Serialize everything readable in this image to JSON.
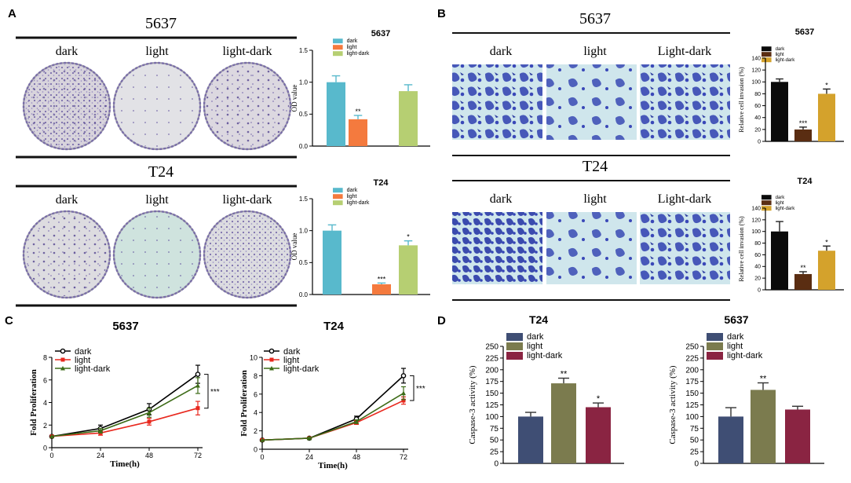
{
  "panel_labels": {
    "A": "A",
    "B": "B",
    "C": "C",
    "D": "D"
  },
  "colors": {
    "od_dark": "#58b9cc",
    "od_light": "#f47a3e",
    "od_lightdark": "#b6cf72",
    "inv_dark": "#0a0a0a",
    "inv_light": "#5a2d12",
    "inv_lightdark": "#d4a22c",
    "prol_dark": "#000000",
    "prol_light": "#e8281e",
    "prol_lightdark": "#3d6b17",
    "casp_dark": "#3f4e74",
    "casp_light": "#7b7b4e",
    "casp_lightdark": "#8a2442"
  },
  "panel_a": {
    "rows": [
      {
        "title": "5637",
        "labels": [
          "dark",
          "light",
          "light-dark"
        ]
      },
      {
        "title": "T24",
        "labels": [
          "dark",
          "light",
          "light-dark"
        ]
      }
    ]
  },
  "panel_b": {
    "rows": [
      {
        "title": "5637",
        "labels": [
          "dark",
          "light",
          "Light-dark"
        ]
      },
      {
        "title": "T24",
        "labels": [
          "dark",
          "light",
          "Light-dark"
        ]
      }
    ]
  },
  "chart_data": [
    {
      "id": "a_5637",
      "type": "bar",
      "title": "5637",
      "legend": [
        "dark",
        "light",
        "light-dark"
      ],
      "categories": [
        "dark",
        "light",
        "light-dark"
      ],
      "values": [
        1.0,
        0.42,
        0.86
      ],
      "errors": [
        0.1,
        0.06,
        0.1
      ],
      "annotations": [
        "",
        "**",
        ""
      ],
      "ylabel": "OD value",
      "ylim": [
        0,
        1.5
      ],
      "yticks": [
        "0.0",
        "0.5",
        "1.0",
        "1.5"
      ],
      "ytick_values": [
        0,
        0.5,
        1.0,
        1.5
      ]
    },
    {
      "id": "a_t24",
      "type": "bar",
      "title": "T24",
      "legend": [
        "dark",
        "light",
        "light-dark"
      ],
      "categories": [
        "dark",
        "light",
        "light-dark"
      ],
      "values": [
        1.0,
        0.16,
        0.77
      ],
      "errors": [
        0.09,
        0.02,
        0.07
      ],
      "annotations": [
        "",
        "***",
        "*"
      ],
      "ylabel": "OD value",
      "ylim": [
        0,
        1.5
      ],
      "yticks": [
        "0.0",
        "0.5",
        "1.0",
        "1.5"
      ],
      "ytick_values": [
        0,
        0.5,
        1.0,
        1.5
      ]
    },
    {
      "id": "b_5637",
      "type": "bar",
      "title": "5637",
      "legend": [
        "dark",
        "light",
        "light-dark"
      ],
      "categories": [
        "dark",
        "light",
        "light-dark"
      ],
      "values": [
        100,
        20,
        80
      ],
      "errors": [
        5,
        4,
        8
      ],
      "annotations": [
        "",
        "***",
        "*"
      ],
      "ylabel": "Relative cell invasion (%)",
      "ylim": [
        0,
        140
      ],
      "yticks": [
        "0",
        "20",
        "40",
        "60",
        "80",
        "100",
        "120",
        "140"
      ],
      "ytick_values": [
        0,
        20,
        40,
        60,
        80,
        100,
        120,
        140
      ]
    },
    {
      "id": "b_t24",
      "type": "bar",
      "title": "T24",
      "legend": [
        "dark",
        "light",
        "light-dark"
      ],
      "categories": [
        "dark",
        "light",
        "light-dark"
      ],
      "values": [
        100,
        27,
        67
      ],
      "errors": [
        17,
        4,
        8
      ],
      "annotations": [
        "",
        "**",
        "*"
      ],
      "ylabel": "Relative cell invasion (%)",
      "ylim": [
        0,
        140
      ],
      "yticks": [
        "0",
        "20",
        "40",
        "60",
        "80",
        "100",
        "120",
        "140"
      ],
      "ytick_values": [
        0,
        20,
        40,
        60,
        80,
        100,
        120,
        140
      ]
    },
    {
      "id": "c_5637",
      "type": "line",
      "title": "5637",
      "x": [
        0,
        24,
        48,
        72
      ],
      "xticks": [
        "0",
        "24",
        "48",
        "72"
      ],
      "xlabel": "Time(h)",
      "ylabel": "Fold  Proliferation",
      "ylim": [
        0,
        8
      ],
      "yticks": [
        "0",
        "2",
        "4",
        "6",
        "8"
      ],
      "ytick_values": [
        0,
        2,
        4,
        6,
        8
      ],
      "series": [
        {
          "name": "dark",
          "values": [
            1.0,
            1.7,
            3.4,
            6.5
          ],
          "errors": [
            0,
            0.3,
            0.5,
            0.8
          ]
        },
        {
          "name": "light",
          "values": [
            1.0,
            1.3,
            2.3,
            3.5
          ],
          "errors": [
            0,
            0.2,
            0.3,
            0.6
          ]
        },
        {
          "name": "light-dark",
          "values": [
            1.0,
            1.5,
            3.1,
            5.5
          ],
          "errors": [
            0,
            0.2,
            0.4,
            0.7
          ]
        }
      ],
      "significance": "***"
    },
    {
      "id": "c_t24",
      "type": "line",
      "title": "T24",
      "x": [
        0,
        24,
        48,
        72
      ],
      "xticks": [
        "0",
        "24",
        "48",
        "72"
      ],
      "xlabel": "Time(h)",
      "ylabel": "Fold  Proliferation",
      "ylim": [
        0,
        10
      ],
      "yticks": [
        "0",
        "2",
        "4",
        "6",
        "8",
        "10"
      ],
      "ytick_values": [
        0,
        2,
        4,
        6,
        8,
        10
      ],
      "series": [
        {
          "name": "dark",
          "values": [
            1.0,
            1.2,
            3.3,
            8.0
          ],
          "errors": [
            0,
            0.1,
            0.3,
            0.8
          ]
        },
        {
          "name": "light",
          "values": [
            1.0,
            1.2,
            2.9,
            5.3
          ],
          "errors": [
            0,
            0.1,
            0.2,
            0.4
          ]
        },
        {
          "name": "light-dark",
          "values": [
            1.0,
            1.2,
            3.0,
            6.1
          ],
          "errors": [
            0,
            0.1,
            0.2,
            0.7
          ]
        }
      ],
      "significance": "***"
    },
    {
      "id": "d_t24",
      "type": "bar",
      "title": "T24",
      "legend": [
        "dark",
        "light",
        "light-dark"
      ],
      "categories": [
        "dark",
        "light",
        "light-dark"
      ],
      "values": [
        100,
        171,
        120
      ],
      "errors": [
        9,
        11,
        9
      ],
      "annotations": [
        "",
        "**",
        "*"
      ],
      "ylabel": "Caspase-3 activity (%)",
      "ylim": [
        0,
        250
      ],
      "yticks": [
        "0",
        "25",
        "50",
        "75",
        "100",
        "125",
        "150",
        "175",
        "200",
        "225",
        "250"
      ],
      "ytick_values": [
        0,
        25,
        50,
        75,
        100,
        125,
        150,
        175,
        200,
        225,
        250
      ]
    },
    {
      "id": "d_5637",
      "type": "bar",
      "title": "5637",
      "legend": [
        "dark",
        "light",
        "light-dark"
      ],
      "categories": [
        "dark",
        "light",
        "light-dark"
      ],
      "values": [
        100,
        157,
        115
      ],
      "errors": [
        19,
        15,
        7
      ],
      "annotations": [
        "",
        "**",
        ""
      ],
      "ylabel": "Caspase-3 activity (%)",
      "ylim": [
        0,
        250
      ],
      "yticks": [
        "0",
        "25",
        "50",
        "75",
        "100",
        "125",
        "150",
        "175",
        "200",
        "225",
        "250"
      ],
      "ytick_values": [
        0,
        25,
        50,
        75,
        100,
        125,
        150,
        175,
        200,
        225,
        250
      ]
    }
  ]
}
